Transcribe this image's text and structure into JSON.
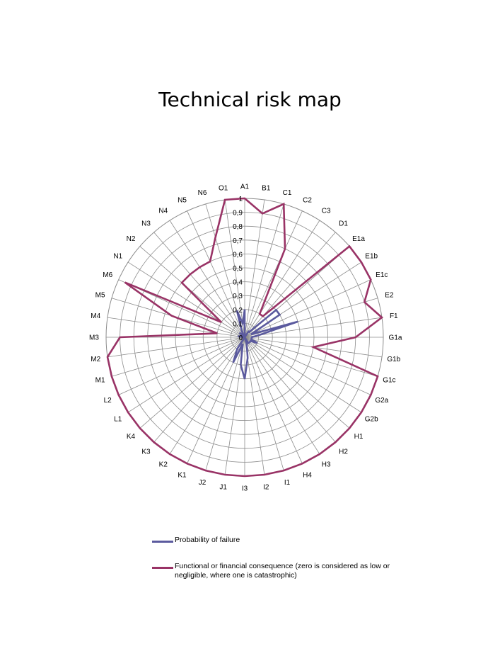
{
  "chart_data": {
    "type": "radar",
    "title": "Technical risk map",
    "categories": [
      "A1",
      "B1",
      "C1",
      "C2",
      "C3",
      "D1",
      "E1a",
      "E1b",
      "E1c",
      "E2",
      "F1",
      "G1a",
      "G1b",
      "G1c",
      "G2a",
      "G2b",
      "H1",
      "H2",
      "H3",
      "H4",
      "I1",
      "I2",
      "I3",
      "J1",
      "J2",
      "K1",
      "K2",
      "K3",
      "K4",
      "L1",
      "L2",
      "M1",
      "M2",
      "M3",
      "M4",
      "M5",
      "M6",
      "N1",
      "N2",
      "N3",
      "N4",
      "N5",
      "N6",
      "O1"
    ],
    "radial_ticks": [
      "0",
      "0,1",
      "0,2",
      "0,3",
      "0,4",
      "0,5",
      "0,6",
      "0,7",
      "0,8",
      "0,9",
      "1"
    ],
    "rlim": [
      0,
      1
    ],
    "grid": true,
    "legend_position": "bottom",
    "series": [
      {
        "name": "Probability of failure",
        "color": "#5B5A9E",
        "values": [
          0.2,
          0,
          0,
          0,
          0.05,
          0.05,
          0.3,
          0.3,
          0.05,
          0.4,
          0.1,
          0.05,
          0.05,
          0.05,
          0.1,
          0.05,
          0.05,
          0.05,
          0.05,
          0,
          0.05,
          0.15,
          0.3,
          0.2,
          0.05,
          0.2,
          0.1,
          0,
          0,
          0,
          0,
          0,
          0,
          0,
          0.05,
          0.02,
          0.02,
          0,
          0.05,
          0.02,
          0.02,
          0.05,
          0.2,
          0.1
        ]
      },
      {
        "name": "Functional or financial consequence (zero is considered as low or negligible, where one is catastrophic)",
        "color": "#993366",
        "values": [
          1,
          0.9,
          1,
          0.7,
          0.2,
          0.2,
          1,
          1,
          1,
          0.9,
          1,
          0.8,
          0.5,
          1,
          1,
          1,
          1,
          1,
          1,
          1,
          1,
          1,
          1,
          1,
          1,
          1,
          1,
          1,
          1,
          1,
          1,
          1,
          1,
          0.9,
          0.2,
          0.55,
          0.95,
          0.2,
          0.6,
          0.6,
          0.6,
          0.6,
          0.75,
          1
        ]
      }
    ]
  }
}
